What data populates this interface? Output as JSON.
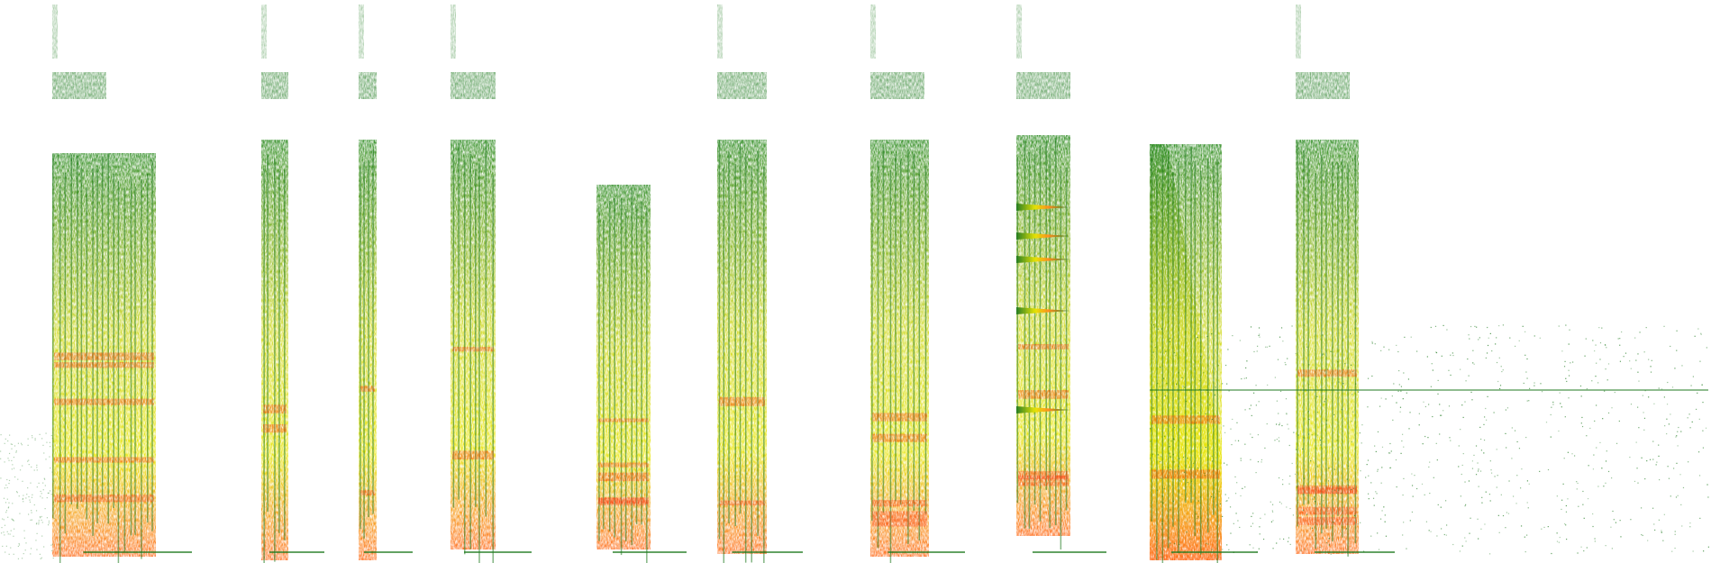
{
  "figure": {
    "kind": "spectrogram-strip",
    "colormap": {
      "low": "#1f7a1f",
      "mid": "#e8e800",
      "high": "#ff3b1f",
      "background": "#ffffff"
    },
    "segments": [
      {
        "id": "seg-1",
        "band": "low-mid",
        "intensity": "high"
      },
      {
        "id": "seg-2",
        "band": "full-narrow",
        "intensity": "medium"
      },
      {
        "id": "seg-3",
        "band": "full-narrow",
        "intensity": "medium"
      },
      {
        "id": "seg-4",
        "band": "full",
        "intensity": "medium"
      },
      {
        "id": "seg-5",
        "band": "mid",
        "intensity": "high"
      },
      {
        "id": "seg-6",
        "band": "full",
        "intensity": "medium"
      },
      {
        "id": "seg-7",
        "band": "full",
        "intensity": "high"
      },
      {
        "id": "seg-8",
        "band": "harmonic-spikes",
        "intensity": "high"
      },
      {
        "id": "seg-9",
        "band": "sweep",
        "intensity": "medium"
      },
      {
        "id": "seg-10",
        "band": "full",
        "intensity": "high"
      }
    ]
  }
}
